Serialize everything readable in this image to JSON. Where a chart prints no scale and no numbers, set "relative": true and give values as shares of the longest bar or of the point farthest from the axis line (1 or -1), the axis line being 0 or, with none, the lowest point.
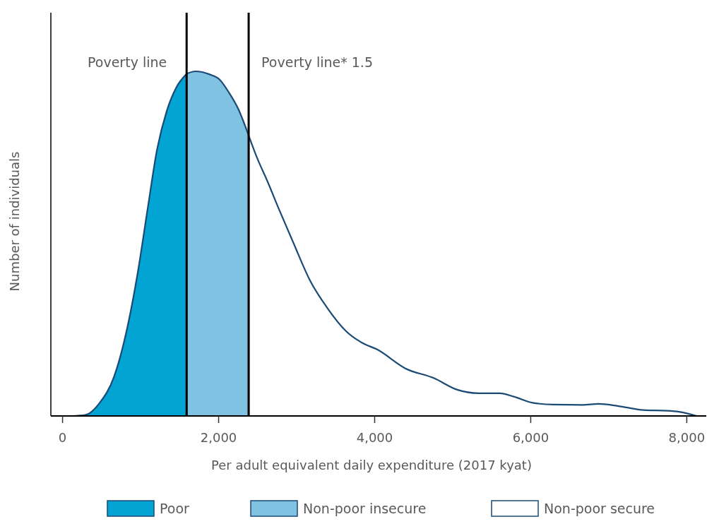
{
  "chart_data": {
    "type": "area",
    "relative": true,
    "xlabel": "Per adult equivalent daily expenditure (2017 kyat)",
    "ylabel": "Number of individuals",
    "xlim": [
      -150,
      8250
    ],
    "xticks": [
      0,
      {
        "value": 2000,
        "label": "2,000"
      },
      {
        "value": 4000,
        "label": "4,000"
      },
      {
        "value": 6000,
        "label": "6,000"
      },
      {
        "value": 8000,
        "label": "8,000"
      }
    ],
    "tick_labels": "x",
    "legend": "bottom",
    "grid": false,
    "ref_lines": [
      {
        "axis": "x",
        "value": 1590,
        "label": "Poverty line",
        "color": "#000000"
      },
      {
        "axis": "x",
        "value": 2385,
        "label": "Poverty line* 1.5",
        "color": "#000000"
      }
    ],
    "series": [
      {
        "name": "Poor",
        "color": "#02a4d3",
        "x": [
          123,
          292,
          476,
          660,
          813,
          966,
          1089,
          1211,
          1334,
          1457,
          1590
        ],
        "values": [
          0,
          0.003,
          0.038,
          0.114,
          0.239,
          0.419,
          0.599,
          0.773,
          0.884,
          0.953,
          0.993
        ]
      },
      {
        "name": "Non-poor insecure",
        "color": "#80c2e2",
        "x": [
          1590,
          1702,
          1886,
          2009,
          2131,
          2254,
          2385
        ],
        "values": [
          0.993,
          1,
          0.991,
          0.977,
          0.939,
          0.89,
          0.814
        ]
      },
      {
        "name": "Non-poor secure",
        "color": "#ffffff",
        "x": [
          2385,
          2500,
          2622,
          2775,
          2959,
          3174,
          3388,
          3634,
          3849,
          4031,
          4393,
          4756,
          5059,
          5331,
          5603,
          5784,
          6025,
          6297,
          6660,
          6872,
          7114,
          7446,
          7748,
          7900,
          8126
        ],
        "values": [
          0.814,
          0.745,
          0.683,
          0.599,
          0.502,
          0.392,
          0.315,
          0.246,
          0.211,
          0.193,
          0.138,
          0.11,
          0.076,
          0.066,
          0.066,
          0.056,
          0.038,
          0.033,
          0.032,
          0.035,
          0.029,
          0.017,
          0.015,
          0.012,
          0
        ]
      }
    ]
  }
}
